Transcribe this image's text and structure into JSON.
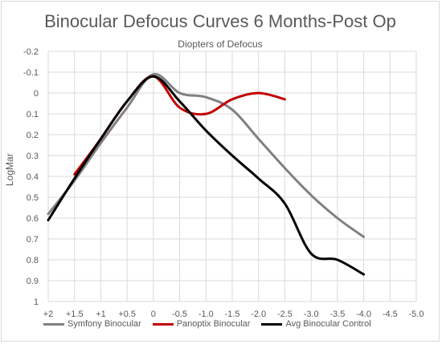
{
  "chart_data": {
    "type": "line",
    "title": "Binocular Defocus Curves 6 Months-Post Op",
    "subtitle": "Diopters of Defocus",
    "ylabel": "LogMar",
    "xlabel": "",
    "x_ticks": [
      "+2",
      "+1.5",
      "+1",
      "+0.5",
      "0",
      "-0.5",
      "-1.0",
      "-1.5",
      "-2.0",
      "-2.5",
      "-3.0",
      "-3.5",
      "-4.0",
      "-4.5",
      "-5.0"
    ],
    "x_axis_position": "bottom",
    "ylim": [
      -0.2,
      1.0
    ],
    "y_inverted": true,
    "y_ticks": [
      "-0.2",
      "-0.1",
      "0",
      "0.1",
      "0.2",
      "0.3",
      "0.4",
      "0.5",
      "0.6",
      "0.7",
      "0.8",
      "0.9",
      "1"
    ],
    "grid": true,
    "legend_position": "bottom",
    "series": [
      {
        "name": "Symfony Binocular",
        "color": "#808080",
        "x": [
          2,
          1.5,
          1,
          0.5,
          0,
          -0.5,
          -1.0,
          -1.5,
          -2.0,
          -2.5,
          -3.0,
          -3.5,
          -4.0
        ],
        "values": [
          0.58,
          0.42,
          0.24,
          0.07,
          -0.09,
          0.0,
          0.02,
          0.08,
          0.22,
          0.36,
          0.49,
          0.6,
          0.69
        ]
      },
      {
        "name": "Panoptix Binocular",
        "color": "#c00000",
        "x": [
          1.5,
          1,
          0.5,
          0,
          -0.5,
          -1.0,
          -1.5,
          -2.0,
          -2.5
        ],
        "values": [
          0.39,
          0.22,
          0.04,
          -0.08,
          0.07,
          0.1,
          0.03,
          0.0,
          0.03
        ]
      },
      {
        "name": "Avg Binocular Control",
        "color": "#000000",
        "x": [
          2,
          1.5,
          1,
          0.5,
          0,
          -0.5,
          -1.0,
          -1.5,
          -2.0,
          -2.5,
          -3.0,
          -3.5,
          -4.0
        ],
        "values": [
          0.61,
          0.41,
          0.22,
          0.04,
          -0.08,
          0.04,
          0.18,
          0.3,
          0.41,
          0.53,
          0.77,
          0.8,
          0.87
        ]
      }
    ]
  }
}
